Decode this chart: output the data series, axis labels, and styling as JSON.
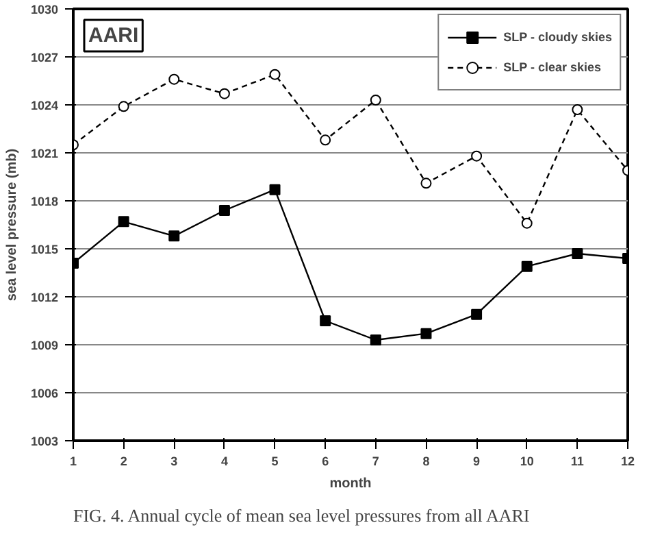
{
  "chart_data": {
    "type": "line",
    "xlabel": "month",
    "ylabel": "sea level pressure (mb)",
    "x": [
      1,
      2,
      3,
      4,
      5,
      6,
      7,
      8,
      9,
      10,
      11,
      12
    ],
    "xlim": [
      1,
      12
    ],
    "xticks": [
      1,
      2,
      3,
      4,
      5,
      6,
      7,
      8,
      9,
      10,
      11,
      12
    ],
    "ylim": [
      1003,
      1030
    ],
    "yticks": [
      1003,
      1006,
      1009,
      1012,
      1015,
      1018,
      1021,
      1024,
      1027,
      1030
    ],
    "grid": "y",
    "legend": "top right",
    "series": [
      {
        "name": "SLP - cloudy skies",
        "color": "#000000",
        "marker": "square",
        "line_style": "solid",
        "values": [
          1014.1,
          1016.7,
          1015.8,
          1017.4,
          1018.7,
          1010.5,
          1009.3,
          1009.7,
          1010.9,
          1013.9,
          1014.7,
          1014.4
        ]
      },
      {
        "name": "SLP - clear skies",
        "color": "#000000",
        "marker": "circle",
        "line_style": "dashed",
        "values": [
          1021.5,
          1023.9,
          1025.6,
          1024.7,
          1025.9,
          1021.8,
          1024.3,
          1019.1,
          1020.8,
          1016.6,
          1023.7,
          1019.9
        ]
      }
    ],
    "annotations": [
      "AARI",
      "FIG. 4. Annual cycle of mean sea level pressures from all AARI"
    ]
  }
}
